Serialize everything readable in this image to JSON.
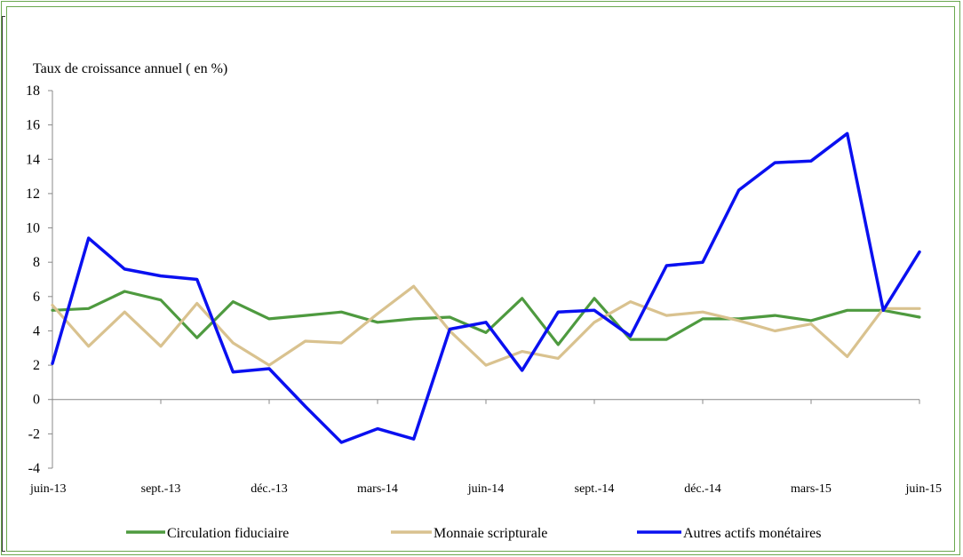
{
  "chart_data": {
    "type": "line",
    "ylabel": "Taux de croissance annuel ( en %)",
    "ylim": [
      -4,
      18
    ],
    "yticks": [
      -4,
      -2,
      0,
      2,
      4,
      6,
      8,
      10,
      12,
      14,
      16,
      18
    ],
    "ytick_labels": [
      "-4",
      "-2",
      "0",
      "2",
      "4",
      "6",
      "8",
      "10",
      "12",
      "14",
      "16",
      "18"
    ],
    "xtick_labels": [
      "juin-13",
      "sept.-13",
      "déc.-13",
      "mars-14",
      "juin-14",
      "sept.-14",
      "déc.-14",
      "mars-15",
      "juin-15"
    ],
    "xtick_index": [
      0,
      3,
      6,
      9,
      12,
      15,
      18,
      21,
      24
    ],
    "x": [
      "juin-13",
      "juil.-13",
      "août-13",
      "sept.-13",
      "oct.-13",
      "nov.-13",
      "déc.-13",
      "janv.-14",
      "févr.-14",
      "mars-14",
      "avr.-14",
      "mai-14",
      "juin-14",
      "juil.-14",
      "août-14",
      "sept.-14",
      "oct.-14",
      "nov.-14",
      "déc.-14",
      "janv.-15",
      "févr.-15",
      "mars-15",
      "avr.-15",
      "mai-15",
      "juin-15"
    ],
    "grid": false,
    "legend_position": "bottom",
    "series": [
      {
        "name": "Circulation fiduciaire",
        "color": "#4e9a3f",
        "values": [
          5.2,
          5.3,
          6.3,
          5.8,
          3.6,
          5.7,
          4.7,
          4.9,
          5.1,
          4.5,
          4.7,
          4.8,
          3.9,
          5.9,
          3.2,
          5.9,
          3.5,
          3.5,
          4.7,
          4.7,
          4.9,
          4.6,
          5.2,
          5.2,
          4.8
        ]
      },
      {
        "name": "Monnaie scripturale",
        "color": "#d9c28f",
        "values": [
          5.5,
          3.1,
          5.1,
          3.1,
          5.6,
          3.3,
          2.0,
          3.4,
          3.3,
          5.0,
          6.6,
          4.0,
          2.0,
          2.8,
          2.4,
          4.5,
          5.7,
          4.9,
          5.1,
          4.6,
          4.0,
          4.4,
          2.5,
          5.3,
          5.3
        ]
      },
      {
        "name": "Autres actifs monétaires",
        "color": "#0a10f0",
        "values": [
          2.1,
          9.4,
          7.6,
          7.2,
          7.0,
          1.6,
          1.8,
          -0.4,
          -2.5,
          -1.7,
          -2.3,
          4.1,
          4.5,
          1.7,
          5.1,
          5.2,
          3.7,
          7.8,
          8.0,
          12.2,
          13.8,
          13.9,
          15.5,
          5.2,
          8.6
        ]
      }
    ]
  }
}
